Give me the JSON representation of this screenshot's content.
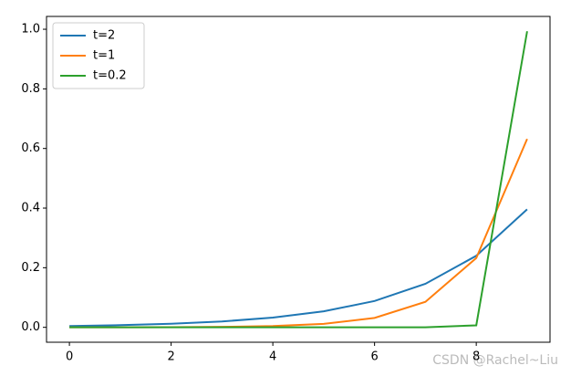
{
  "chart_data": {
    "type": "line",
    "x": [
      0,
      1,
      2,
      3,
      4,
      5,
      6,
      7,
      8,
      9
    ],
    "series": [
      {
        "name": "t=2",
        "color": "#1f77b4",
        "values": [
          0.0044,
          0.0073,
          0.012,
          0.0197,
          0.0325,
          0.0536,
          0.0884,
          0.146,
          0.24,
          0.396
        ]
      },
      {
        "name": "t=1",
        "color": "#ff7f0e",
        "values": [
          0.0001,
          0.0002,
          0.0006,
          0.0016,
          0.0043,
          0.0116,
          0.0315,
          0.0855,
          0.2325,
          0.6321
        ]
      },
      {
        "name": "t=0.2",
        "color": "#2ca02c",
        "values": [
          0,
          0,
          0,
          0,
          0,
          0,
          0,
          0,
          0.0067,
          0.9933
        ]
      }
    ],
    "xlim": [
      -0.45,
      9.45
    ],
    "xticks": [
      0,
      2,
      4,
      6,
      8
    ],
    "ylim": [
      -0.05,
      1.043
    ],
    "yticks": [
      {
        "value": 0,
        "label": "0.0"
      },
      {
        "value": 0.2,
        "label": "0.2"
      },
      {
        "value": 0.4,
        "label": "0.4"
      },
      {
        "value": 0.6,
        "label": "0.6"
      },
      {
        "value": 0.8,
        "label": "0.8"
      },
      {
        "value": 1,
        "label": "1.0"
      }
    ],
    "legend": "upper left",
    "watermark": "CSDN @Rachel~Liu"
  }
}
